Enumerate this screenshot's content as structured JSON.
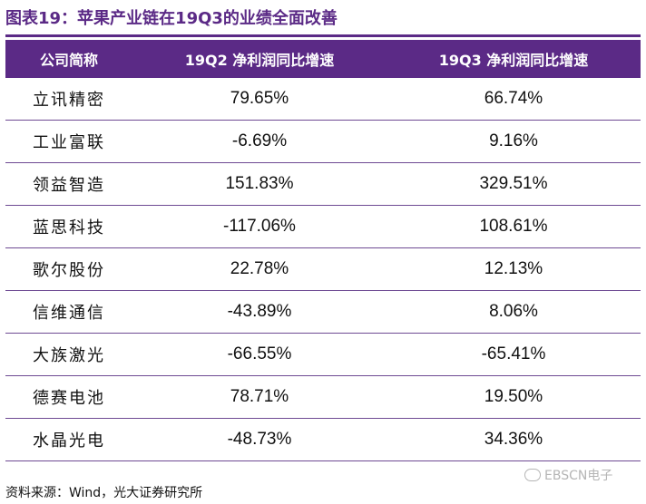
{
  "title": "图表19：苹果产业链在19Q3的业绩全面改善",
  "table": {
    "headers": [
      "公司简称",
      "19Q2 净利润同比增速",
      "19Q3 净利润同比增速"
    ],
    "rows": [
      [
        "立讯精密",
        "79.65%",
        "66.74%"
      ],
      [
        "工业富联",
        "-6.69%",
        "9.16%"
      ],
      [
        "领益智造",
        "151.83%",
        "329.51%"
      ],
      [
        "蓝思科技",
        "-117.06%",
        "108.61%"
      ],
      [
        "歌尔股份",
        "22.78%",
        "12.13%"
      ],
      [
        "信维通信",
        "-43.89%",
        "8.06%"
      ],
      [
        "大族激光",
        "-66.55%",
        "-65.41%"
      ],
      [
        "德赛电池",
        "78.71%",
        "19.50%"
      ],
      [
        "水晶光电",
        "-48.73%",
        "34.36%"
      ]
    ]
  },
  "source": "资料来源：Wind，光大证券研究所",
  "watermark": "EBSCN电子",
  "colors": {
    "accent": "#5b2a86",
    "row_rule": "#6e4a93"
  }
}
